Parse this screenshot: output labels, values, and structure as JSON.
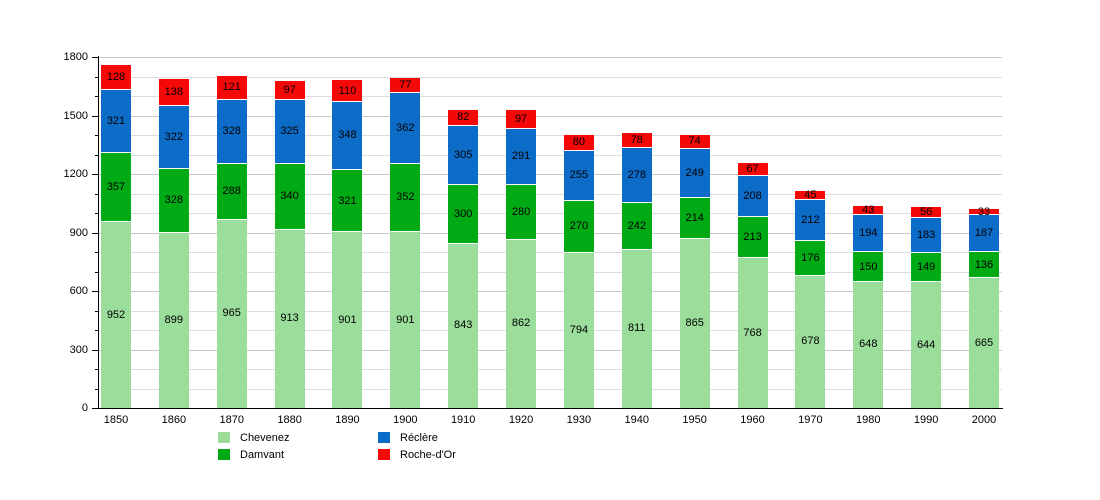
{
  "chart_data": {
    "type": "bar",
    "stacked": true,
    "categories": [
      "1850",
      "1860",
      "1870",
      "1880",
      "1890",
      "1900",
      "1910",
      "1920",
      "1930",
      "1940",
      "1950",
      "1960",
      "1970",
      "1980",
      "1990",
      "2000"
    ],
    "series": [
      {
        "name": "Chevenez",
        "color": "#9BDE9B",
        "values": [
          952,
          899,
          965,
          913,
          901,
          901,
          843,
          862,
          794,
          811,
          865,
          768,
          678,
          648,
          644,
          665
        ]
      },
      {
        "name": "Damvant",
        "color": "#00AA14",
        "values": [
          357,
          328,
          288,
          340,
          321,
          352,
          300,
          280,
          270,
          242,
          214,
          213,
          176,
          150,
          149,
          136
        ]
      },
      {
        "name": "Réclère",
        "color": "#0C6CC8",
        "values": [
          321,
          322,
          328,
          325,
          348,
          362,
          305,
          291,
          255,
          278,
          249,
          208,
          212,
          194,
          183,
          187
        ]
      },
      {
        "name": "Roche-d'Or",
        "color": "#F50808",
        "values": [
          128,
          138,
          121,
          97,
          110,
          77,
          82,
          97,
          80,
          78,
          74,
          67,
          45,
          43,
          56,
          33
        ]
      }
    ],
    "ylim": [
      0,
      1800
    ],
    "y_ticks": [
      0,
      300,
      600,
      900,
      1200,
      1500,
      1800
    ],
    "y_minor_step": 100,
    "grid": true,
    "legend_position": "bottom",
    "legend_order": [
      0,
      2,
      1,
      3
    ],
    "colors": {
      "grid_minor": "#DCDCDC",
      "grid_major": "#C8C8C8",
      "axis": "#000000",
      "label_text": "#000000",
      "background": "#FFFFFF"
    }
  }
}
